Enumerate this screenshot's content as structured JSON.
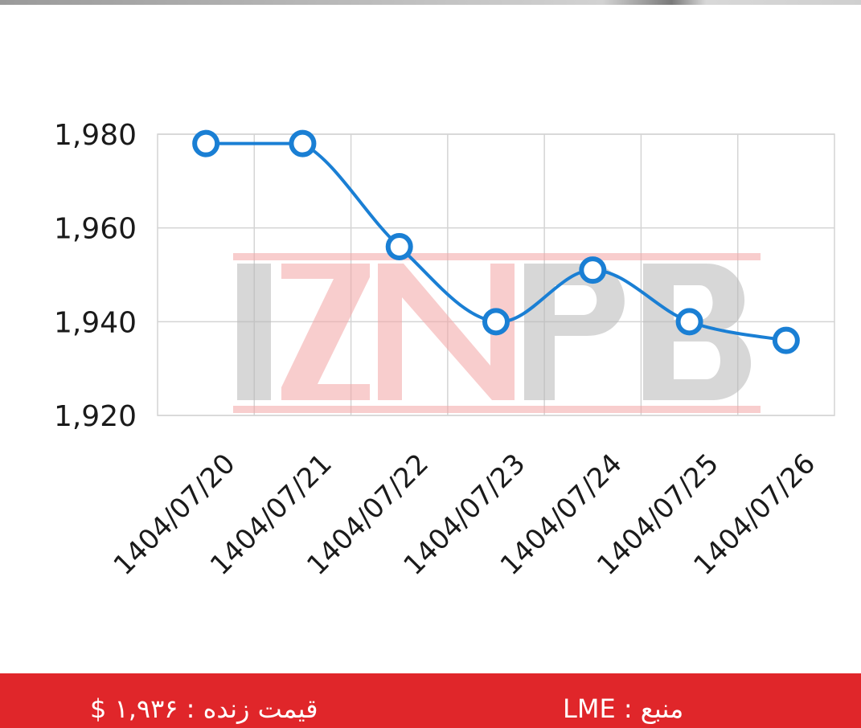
{
  "chart_data": {
    "type": "line",
    "categories": [
      "1404/07/20",
      "1404/07/21",
      "1404/07/22",
      "1404/07/23",
      "1404/07/24",
      "1404/07/25",
      "1404/07/26"
    ],
    "series": [
      {
        "values": [
          1978,
          1978,
          1956,
          1940,
          1951,
          1940,
          1936
        ]
      }
    ],
    "ylim": [
      1920,
      1980
    ],
    "yticks": [
      "1,920",
      "1,940",
      "1,960",
      "1,980"
    ],
    "grid": true,
    "line_color": "#1a7fd4",
    "marker_fill": "#ffffff",
    "watermark": "IZNPB"
  },
  "footer": {
    "price_text": "قیمت زنده : ۱,۹۳۶ $",
    "source_text": "منبع : LME",
    "background_color": "#e0262a"
  }
}
